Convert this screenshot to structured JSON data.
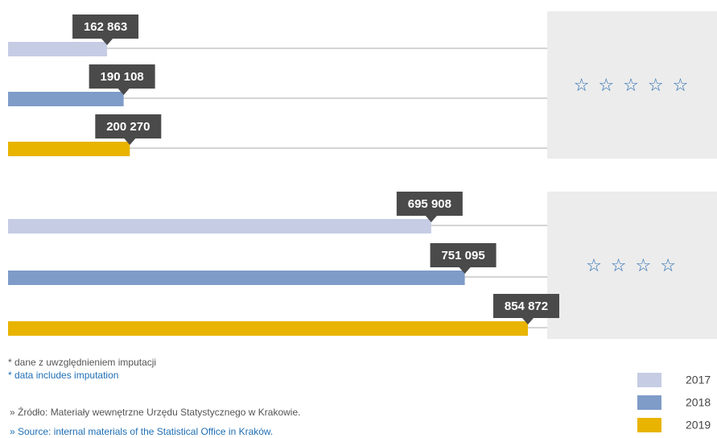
{
  "chart_data": {
    "type": "bar",
    "categories": [
      "☆ ☆ ☆ ☆ ☆",
      "☆ ☆ ☆ ☆"
    ],
    "series": [
      {
        "name": "2017",
        "color": "#c5cce4",
        "values": [
          162863,
          695908
        ],
        "value_labels": [
          "162 863",
          "695 908"
        ]
      },
      {
        "name": "2018",
        "color": "#7f9bc8",
        "values": [
          190108,
          751095
        ],
        "value_labels": [
          "190 108",
          "751 095"
        ]
      },
      {
        "name": "2019",
        "color": "#e8b400",
        "values": [
          200270,
          854872
        ],
        "value_labels": [
          "200 270",
          "854 872"
        ]
      }
    ],
    "notes": [
      "* dane z uwzględnieniem imputacji",
      "* data includes imputation",
      "»  Źródło: Materiały wewnętrzne Urzędu Statystycznego w Krakowie.",
      "»  Source: internal materials of the Statistical Office in Kraków."
    ]
  }
}
